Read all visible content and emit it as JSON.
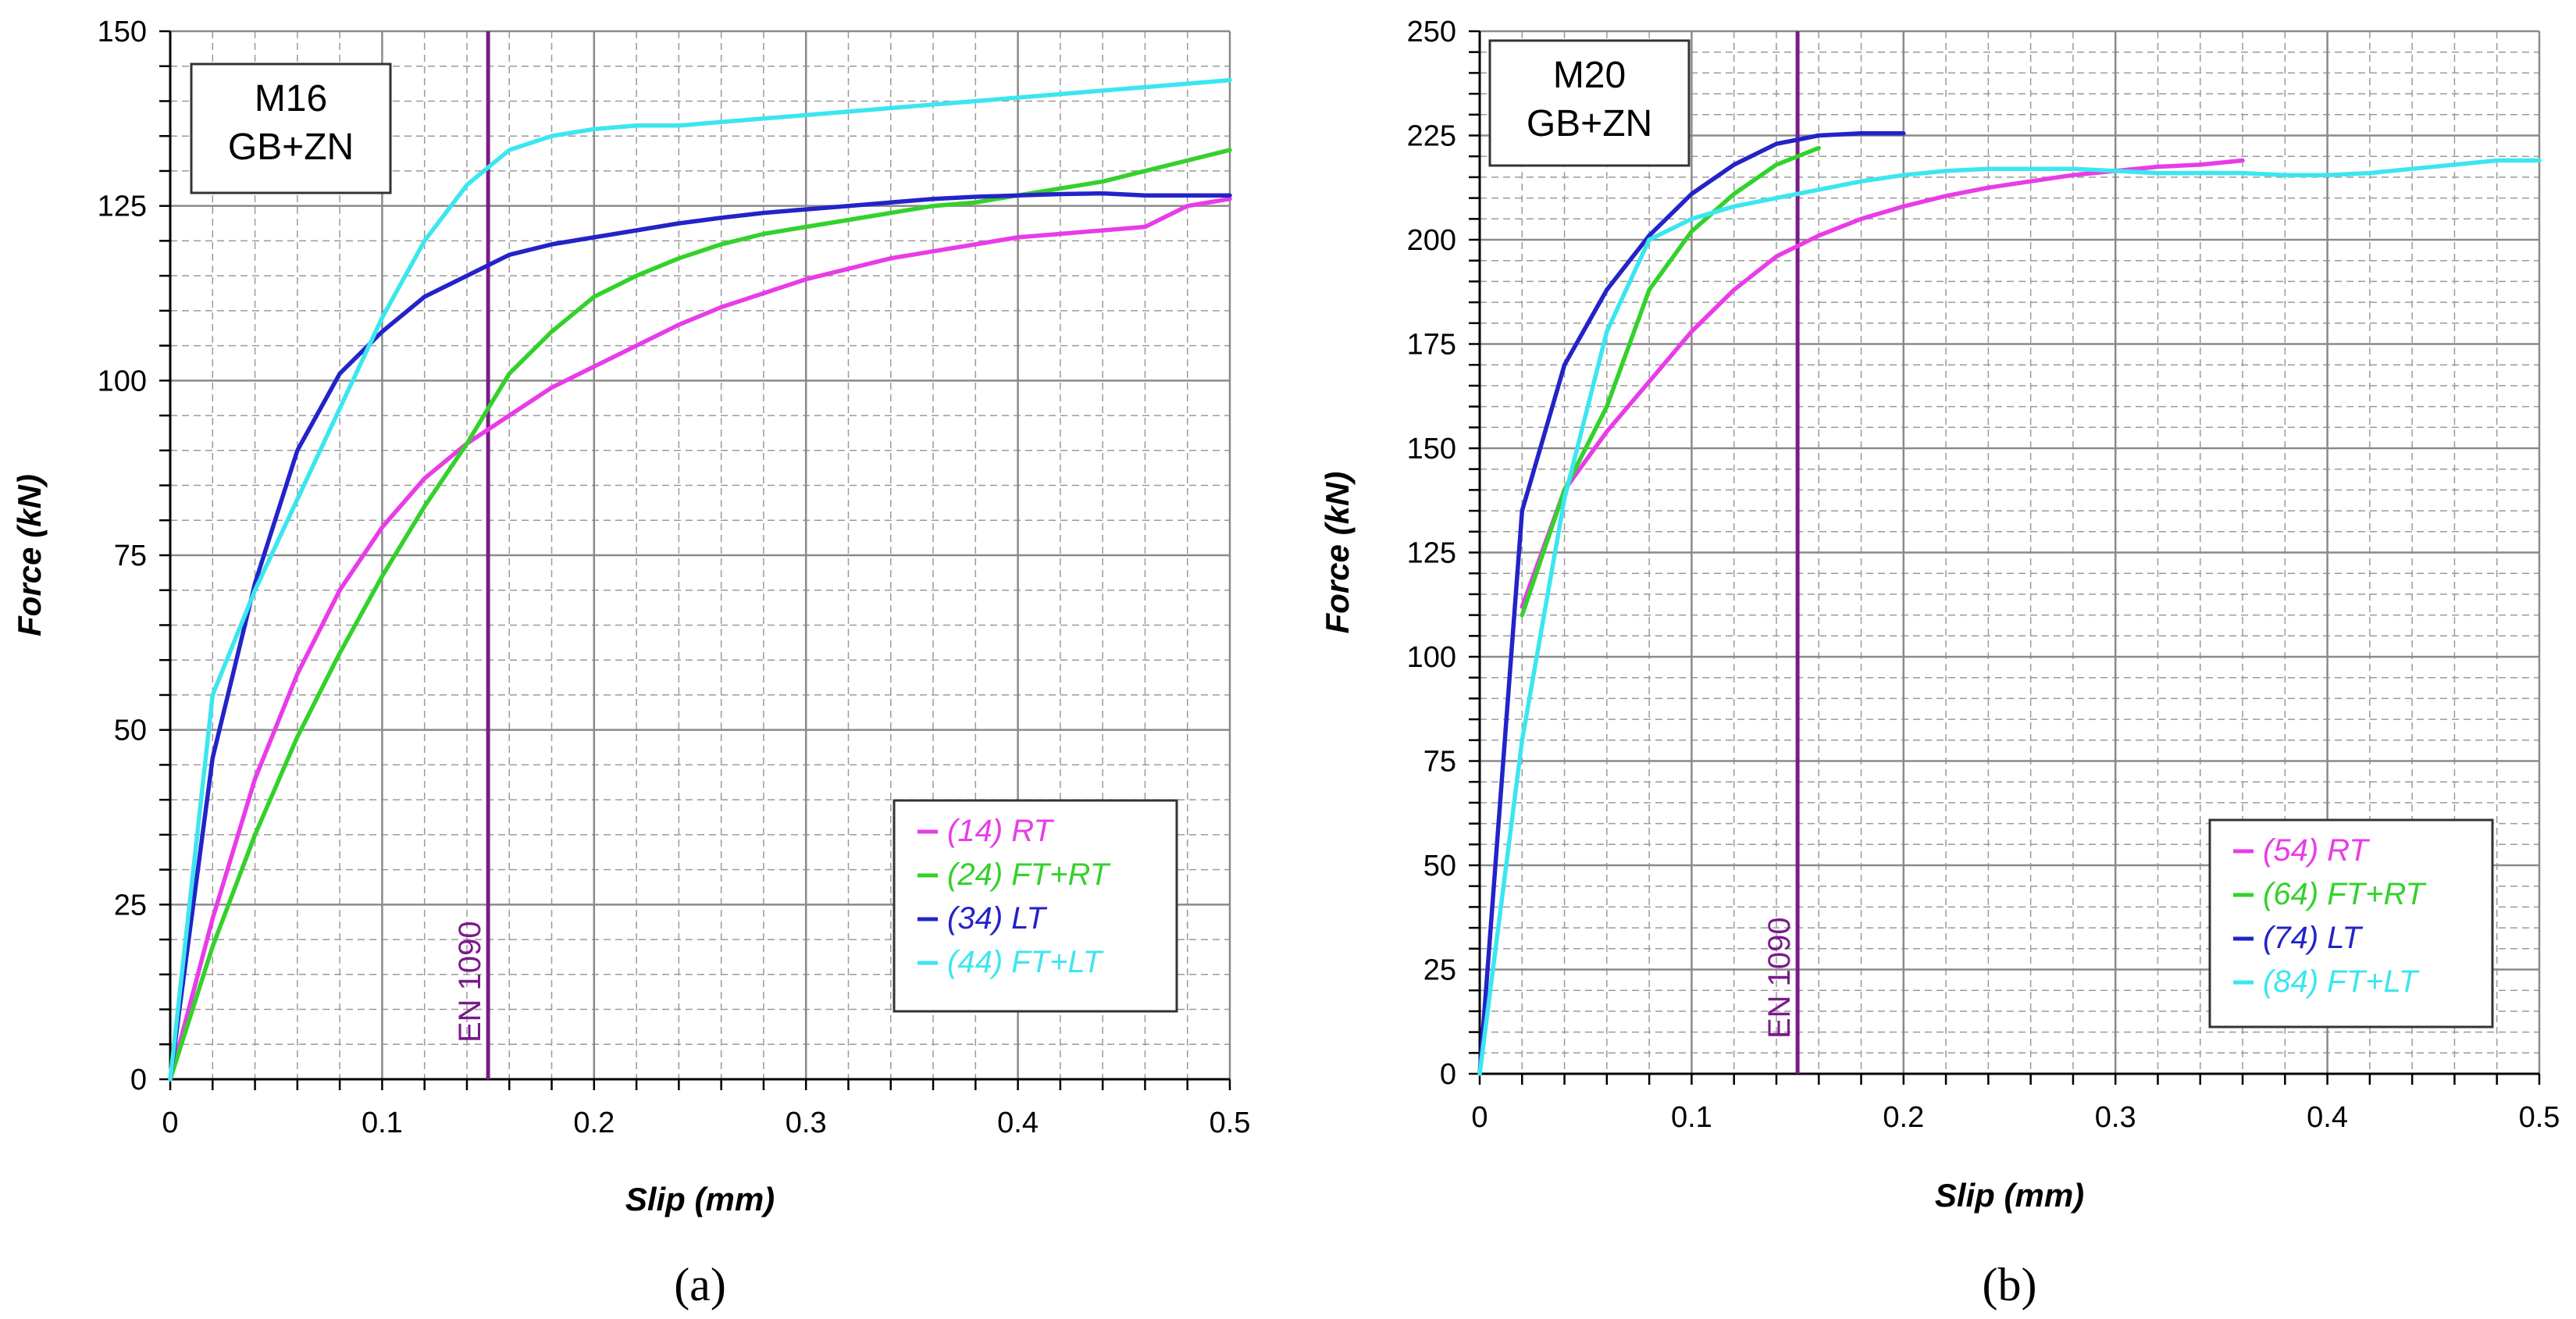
{
  "chart_data": [
    {
      "type": "line",
      "panel_label": "(a)",
      "box_lines": [
        "M16",
        "GB+ZN"
      ],
      "xlabel": "Slip (mm)",
      "ylabel": "Force (kN)",
      "xlim": [
        0,
        0.5
      ],
      "ylim": [
        0,
        150
      ],
      "x_ticks": [
        0,
        0.1,
        0.2,
        0.3,
        0.4,
        0.5
      ],
      "x_tick_labels": [
        "0",
        "0.1",
        "0.2",
        "0.3",
        "0.4",
        "0.5"
      ],
      "y_ticks": [
        0,
        25,
        50,
        75,
        100,
        125,
        150
      ],
      "y_tick_labels": [
        "0",
        "25",
        "50",
        "75",
        "100",
        "125",
        "150"
      ],
      "grid": true,
      "legend_position": "bottom-right",
      "reference_line": {
        "x": 0.15,
        "label": "EN 1090",
        "color": "#7a1a8a"
      },
      "series": [
        {
          "name": "(14) RT",
          "color": "#e83ce8",
          "x": [
            0,
            0.02,
            0.04,
            0.06,
            0.08,
            0.1,
            0.12,
            0.14,
            0.16,
            0.18,
            0.2,
            0.22,
            0.24,
            0.26,
            0.28,
            0.3,
            0.32,
            0.34,
            0.36,
            0.38,
            0.4,
            0.42,
            0.44,
            0.46,
            0.48,
            0.5
          ],
          "y": [
            0,
            23,
            43,
            58,
            70,
            79,
            86,
            91,
            95,
            99,
            102,
            105,
            108,
            110.5,
            112.5,
            114.5,
            116,
            117.5,
            118.5,
            119.5,
            120.5,
            121,
            121.5,
            122,
            125,
            126
          ]
        },
        {
          "name": "(24) FT+RT",
          "color": "#34d12c",
          "x": [
            0,
            0.02,
            0.04,
            0.06,
            0.08,
            0.1,
            0.12,
            0.14,
            0.16,
            0.18,
            0.2,
            0.22,
            0.24,
            0.26,
            0.28,
            0.3,
            0.32,
            0.34,
            0.36,
            0.38,
            0.4,
            0.42,
            0.44,
            0.46,
            0.48,
            0.5
          ],
          "y": [
            0,
            19,
            35,
            49,
            61,
            72,
            82,
            91,
            101,
            107,
            112,
            115,
            117.5,
            119.5,
            121,
            122,
            123,
            124,
            125,
            125.5,
            126.5,
            127.5,
            128.5,
            130,
            131.5,
            133
          ]
        },
        {
          "name": "(34) LT",
          "color": "#2323c8",
          "x": [
            0,
            0.02,
            0.04,
            0.06,
            0.08,
            0.1,
            0.12,
            0.14,
            0.16,
            0.18,
            0.2,
            0.22,
            0.24,
            0.26,
            0.28,
            0.3,
            0.32,
            0.34,
            0.36,
            0.38,
            0.4,
            0.42,
            0.44,
            0.46,
            0.48,
            0.5
          ],
          "y": [
            0,
            46,
            71,
            90,
            101,
            107,
            112,
            115,
            118,
            119.5,
            120.5,
            121.5,
            122.5,
            123.3,
            124,
            124.5,
            125,
            125.5,
            126,
            126.3,
            126.5,
            126.7,
            126.8,
            126.5,
            126.5,
            126.5
          ]
        },
        {
          "name": "(44) FT+LT",
          "color": "#3ce6ef",
          "x": [
            0,
            0.02,
            0.04,
            0.06,
            0.08,
            0.1,
            0.12,
            0.14,
            0.16,
            0.18,
            0.2,
            0.22,
            0.24,
            0.26,
            0.28,
            0.3,
            0.32,
            0.34,
            0.36,
            0.38,
            0.4,
            0.42,
            0.44,
            0.46,
            0.48,
            0.5
          ],
          "y": [
            0,
            55,
            70,
            83,
            96,
            109,
            120,
            128,
            133,
            135,
            136,
            136.5,
            136.5,
            137,
            137.5,
            138,
            138.5,
            139,
            139.5,
            140,
            140.5,
            141,
            141.5,
            142,
            142.5,
            143
          ]
        }
      ]
    },
    {
      "type": "line",
      "panel_label": "(b)",
      "box_lines": [
        "M20",
        "GB+ZN"
      ],
      "xlabel": "Slip (mm)",
      "ylabel": "Force (kN)",
      "xlim": [
        0,
        0.5
      ],
      "ylim": [
        0,
        250
      ],
      "x_ticks": [
        0,
        0.1,
        0.2,
        0.3,
        0.4,
        0.5
      ],
      "x_tick_labels": [
        "0",
        "0.1",
        "0.2",
        "0.3",
        "0.4",
        "0.5"
      ],
      "y_ticks": [
        0,
        25,
        50,
        75,
        100,
        125,
        150,
        175,
        200,
        225,
        250
      ],
      "y_tick_labels": [
        "0",
        "25",
        "50",
        "75",
        "100",
        "125",
        "150",
        "175",
        "200",
        "225",
        "250"
      ],
      "grid": true,
      "legend_position": "bottom-right",
      "reference_line": {
        "x": 0.15,
        "label": "EN 1090",
        "color": "#7a1a8a"
      },
      "series": [
        {
          "name": "(54) RT",
          "color": "#e83ce8",
          "x": [
            0.02,
            0.04,
            0.06,
            0.08,
            0.1,
            0.12,
            0.14,
            0.16,
            0.18,
            0.2,
            0.22,
            0.24,
            0.26,
            0.28,
            0.3,
            0.32,
            0.34,
            0.36
          ],
          "y": [
            112,
            140,
            154,
            166,
            178,
            188,
            196,
            201,
            205,
            208,
            210.5,
            212.5,
            214,
            215.5,
            216.5,
            217.5,
            218,
            219
          ]
        },
        {
          "name": "(64) FT+RT",
          "color": "#34d12c",
          "x": [
            0.02,
            0.04,
            0.06,
            0.08,
            0.1,
            0.12,
            0.14,
            0.16
          ],
          "y": [
            110,
            140,
            160,
            188,
            202,
            211,
            218,
            222
          ]
        },
        {
          "name": "(74) LT",
          "color": "#2323c8",
          "x": [
            0,
            0.02,
            0.04,
            0.06,
            0.08,
            0.1,
            0.12,
            0.14,
            0.16,
            0.18,
            0.2
          ],
          "y": [
            0,
            135,
            170,
            188,
            201,
            211,
            218,
            223,
            225,
            225.5,
            225.5
          ]
        },
        {
          "name": "(84) FT+LT",
          "color": "#3ce6ef",
          "x": [
            0,
            0.02,
            0.04,
            0.06,
            0.08,
            0.1,
            0.12,
            0.14,
            0.16,
            0.18,
            0.2,
            0.22,
            0.24,
            0.26,
            0.28,
            0.3,
            0.32,
            0.34,
            0.36,
            0.38,
            0.4,
            0.42,
            0.44,
            0.46,
            0.48,
            0.5
          ],
          "y": [
            0,
            80,
            138,
            178,
            200,
            205,
            208,
            210,
            212,
            214,
            215.5,
            216.5,
            217,
            217,
            217,
            216.5,
            216,
            216,
            216,
            215.5,
            215.5,
            216,
            217,
            218,
            219,
            219
          ]
        }
      ]
    }
  ]
}
